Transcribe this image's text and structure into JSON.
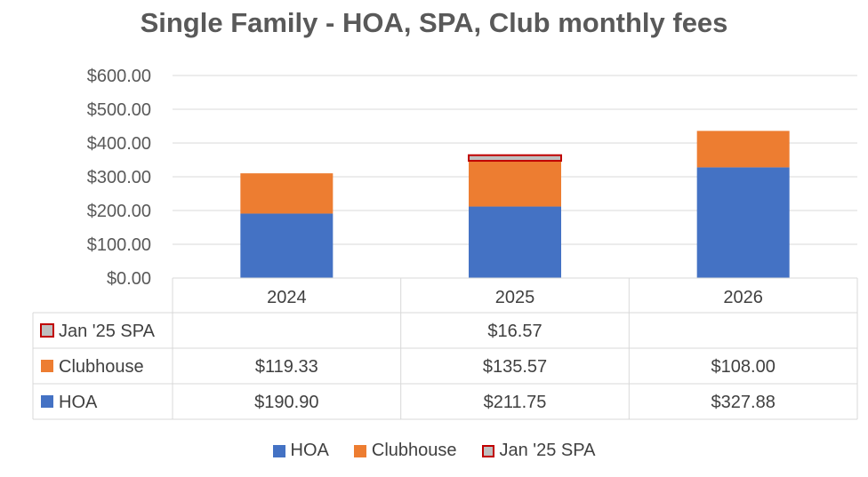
{
  "chart_data": {
    "type": "bar",
    "stacked": true,
    "title": "Single Family  - HOA, SPA, Club monthly fees",
    "categories": [
      "2024",
      "2025",
      "2026"
    ],
    "series": [
      {
        "name": "HOA",
        "values": [
          190.9,
          211.75,
          327.88
        ],
        "labels": [
          "$190.90",
          "$211.75",
          "$327.88"
        ],
        "color": "#4472C4"
      },
      {
        "name": "Clubhouse",
        "values": [
          119.33,
          135.57,
          108.0
        ],
        "labels": [
          "$119.33",
          "$135.57",
          "$108.00"
        ],
        "color": "#ED7D31"
      },
      {
        "name": "Jan '25  SPA",
        "values": [
          null,
          16.57,
          null
        ],
        "labels": [
          "",
          "$16.57",
          ""
        ],
        "color": "#BFBFBF",
        "border": "#C00000"
      }
    ],
    "ylim": [
      0,
      600
    ],
    "yticks": [
      0,
      100,
      200,
      300,
      400,
      500,
      600
    ],
    "ytick_labels": [
      "$0.00",
      "$100.00",
      "$200.00",
      "$300.00",
      "$400.00",
      "$500.00",
      "$600.00"
    ],
    "grid": true,
    "data_table": true,
    "legend": "bottom"
  }
}
